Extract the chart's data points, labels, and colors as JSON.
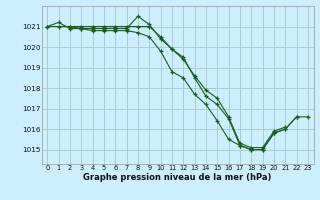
{
  "title": "Graphe pression niveau de la mer (hPa)",
  "bg_color": "#cceeff",
  "grid_color": "#aacccc",
  "line_color": "#1a5c1a",
  "xlim": [
    -0.5,
    23.5
  ],
  "ylim": [
    1014.3,
    1022.0
  ],
  "yticks": [
    1015,
    1016,
    1017,
    1018,
    1019,
    1020,
    1021
  ],
  "xticks": [
    0,
    1,
    2,
    3,
    4,
    5,
    6,
    7,
    8,
    9,
    10,
    11,
    12,
    13,
    14,
    15,
    16,
    17,
    18,
    19,
    20,
    21,
    22,
    23
  ],
  "series1": [
    1021.0,
    1021.2,
    1020.9,
    1020.9,
    1020.9,
    1020.9,
    1020.9,
    1020.9,
    1021.5,
    1021.1,
    1020.4,
    1019.9,
    1019.4,
    1018.6,
    1017.9,
    1017.5,
    1016.6,
    1015.3,
    1015.1,
    1015.1,
    1015.9,
    1016.1,
    null,
    null
  ],
  "series2": [
    1021.0,
    1021.0,
    1021.0,
    1021.0,
    1021.0,
    1021.0,
    1021.0,
    1021.0,
    1021.0,
    1021.0,
    1020.5,
    1019.9,
    1019.5,
    1018.5,
    1017.6,
    1017.2,
    1016.5,
    1015.2,
    1015.0,
    1015.0,
    1015.8,
    1016.0,
    1016.6,
    null
  ],
  "series3": [
    null,
    null,
    1021.0,
    1020.9,
    1020.8,
    1020.8,
    1020.8,
    1020.8,
    1020.7,
    1020.5,
    1019.8,
    1018.8,
    1018.5,
    1017.7,
    1017.2,
    1016.4,
    1015.5,
    1015.2,
    1015.0,
    1015.0,
    1015.8,
    1016.0,
    1016.6,
    1016.6
  ]
}
